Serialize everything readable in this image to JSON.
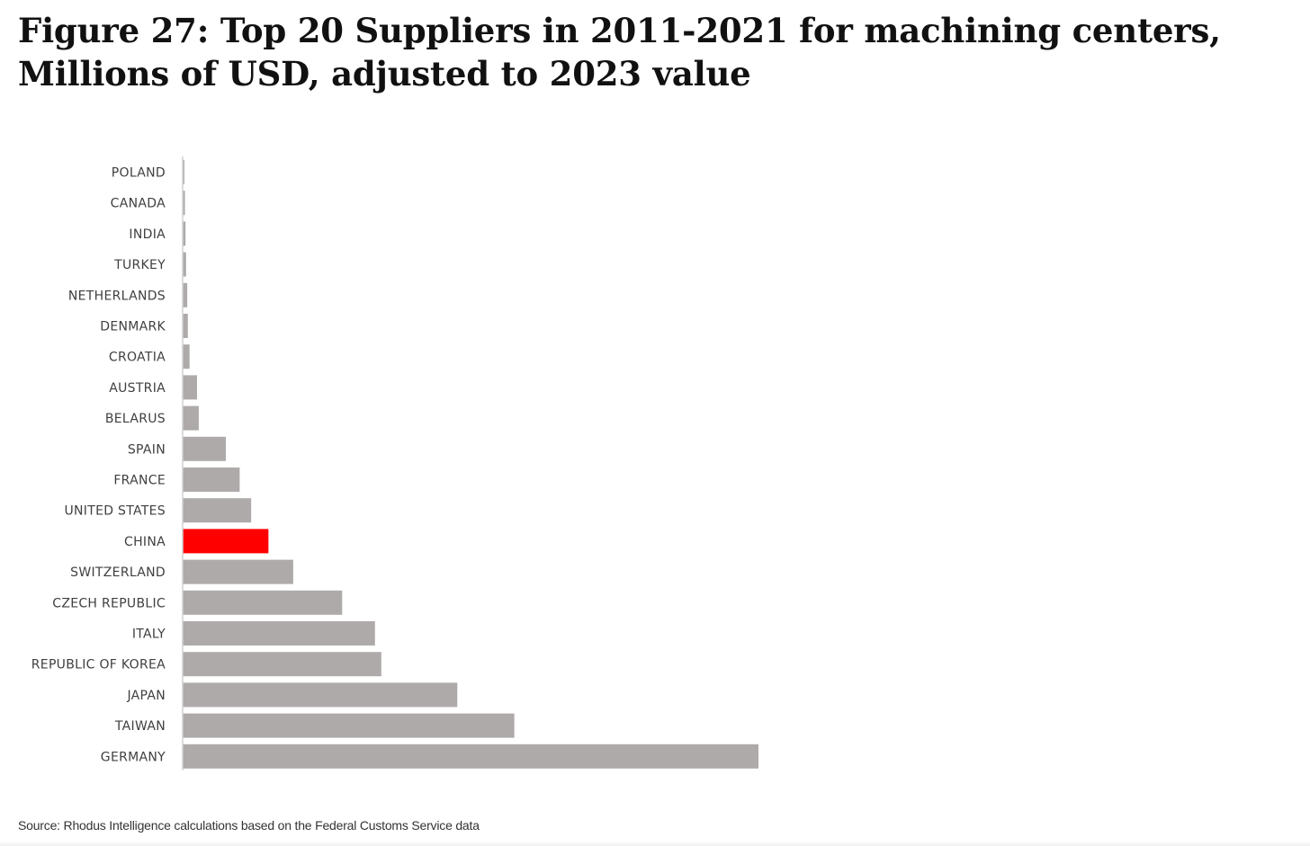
{
  "figure": {
    "title": "Figure 27: Top 20 Suppliers in 2011-2021 for machining centers, Millions of USD, adjusted to 2023 value",
    "source": "Source: Rhodus Intelligence calculations based on the Federal Customs Service data"
  },
  "colors": {
    "bar": "#aeaaaa",
    "highlight": "#ff0000",
    "axis": "#d0d0d0",
    "label": "#3f3f3f"
  },
  "chart_data": {
    "type": "bar",
    "orientation": "horizontal",
    "title": "",
    "xlabel": "",
    "ylabel": "",
    "grid": false,
    "legend": "none",
    "xlim": [
      0,
      100
    ],
    "highlight": "CHINA",
    "categories": [
      "POLAND",
      "CANADA",
      "INDIA",
      "TURKEY",
      "NETHERLANDS",
      "DENMARK",
      "CROATIA",
      "AUSTRIA",
      "BELARUS",
      "SPAIN",
      "FRANCE",
      "UNITED STATES",
      "CHINA",
      "SWITZERLAND",
      "CZECH REPUBLIC",
      "ITALY",
      "REPUBLIC OF KOREA",
      "JAPAN",
      "TAIWAN",
      "GERMANY"
    ],
    "values": [
      0.3,
      0.4,
      0.5,
      0.6,
      0.8,
      0.9,
      1.2,
      2.5,
      2.8,
      7.5,
      9.9,
      11.9,
      14.9,
      19.2,
      27.7,
      33.4,
      34.5,
      47.7,
      57.6,
      100
    ]
  }
}
